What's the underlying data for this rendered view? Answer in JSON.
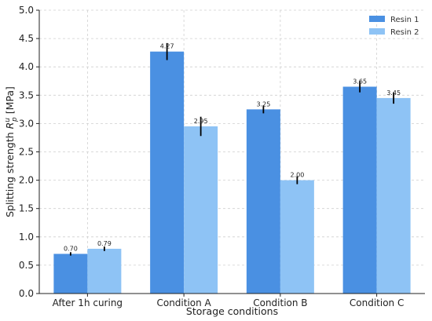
{
  "chart_data": {
    "type": "bar",
    "title": "",
    "xlabel": "Storage conditions",
    "ylabel_main": "Splitting strength ",
    "ylabel_symbol": "R",
    "ylabel_sup": "u",
    "ylabel_sub": "p",
    "ylabel_unit": " [MPa]",
    "categories": [
      "After 1h curing",
      "Condition A",
      "Condition B",
      "Condition C"
    ],
    "series": [
      {
        "name": "Resin 1",
        "color": "#4a90e2",
        "values": [
          0.7,
          4.27,
          3.25,
          3.65
        ],
        "labels": [
          "0.70",
          "4.27",
          "3.25",
          "3.65"
        ],
        "errors": [
          0.03,
          0.15,
          0.07,
          0.1
        ]
      },
      {
        "name": "Resin 2",
        "color": "#8ec3f5",
        "values": [
          0.79,
          2.95,
          2.0,
          3.45
        ],
        "labels": [
          "0.79",
          "2.95",
          "2.00",
          "3.45"
        ],
        "errors": [
          0.04,
          0.17,
          0.07,
          0.1
        ]
      }
    ],
    "ylim": [
      0,
      5
    ],
    "yticks": [
      "0.0",
      "0.5",
      "1.0",
      "1.5",
      "2.0",
      "2.5",
      "3.0",
      "3.5",
      "4.0",
      "4.5",
      "5.0"
    ],
    "grid": true,
    "legend_position": "top-right"
  }
}
